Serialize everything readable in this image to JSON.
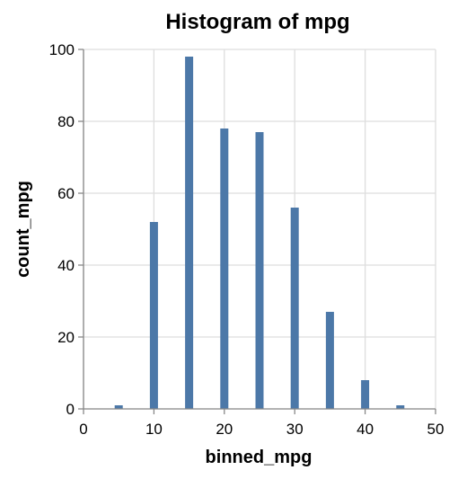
{
  "chart_data": {
    "type": "bar",
    "title": "Histogram of mpg",
    "xlabel": "binned_mpg",
    "ylabel": "count_mpg",
    "x": [
      5,
      10,
      15,
      20,
      25,
      30,
      35,
      40,
      45
    ],
    "values": [
      1,
      52,
      98,
      78,
      77,
      56,
      27,
      8,
      1
    ],
    "xlim": [
      0,
      50
    ],
    "ylim": [
      0,
      100
    ],
    "x_ticks": [
      0,
      10,
      20,
      30,
      40,
      50
    ],
    "y_ticks": [
      0,
      20,
      40,
      60,
      80,
      100
    ],
    "grid": true,
    "bar_color": "#4c78a8"
  }
}
